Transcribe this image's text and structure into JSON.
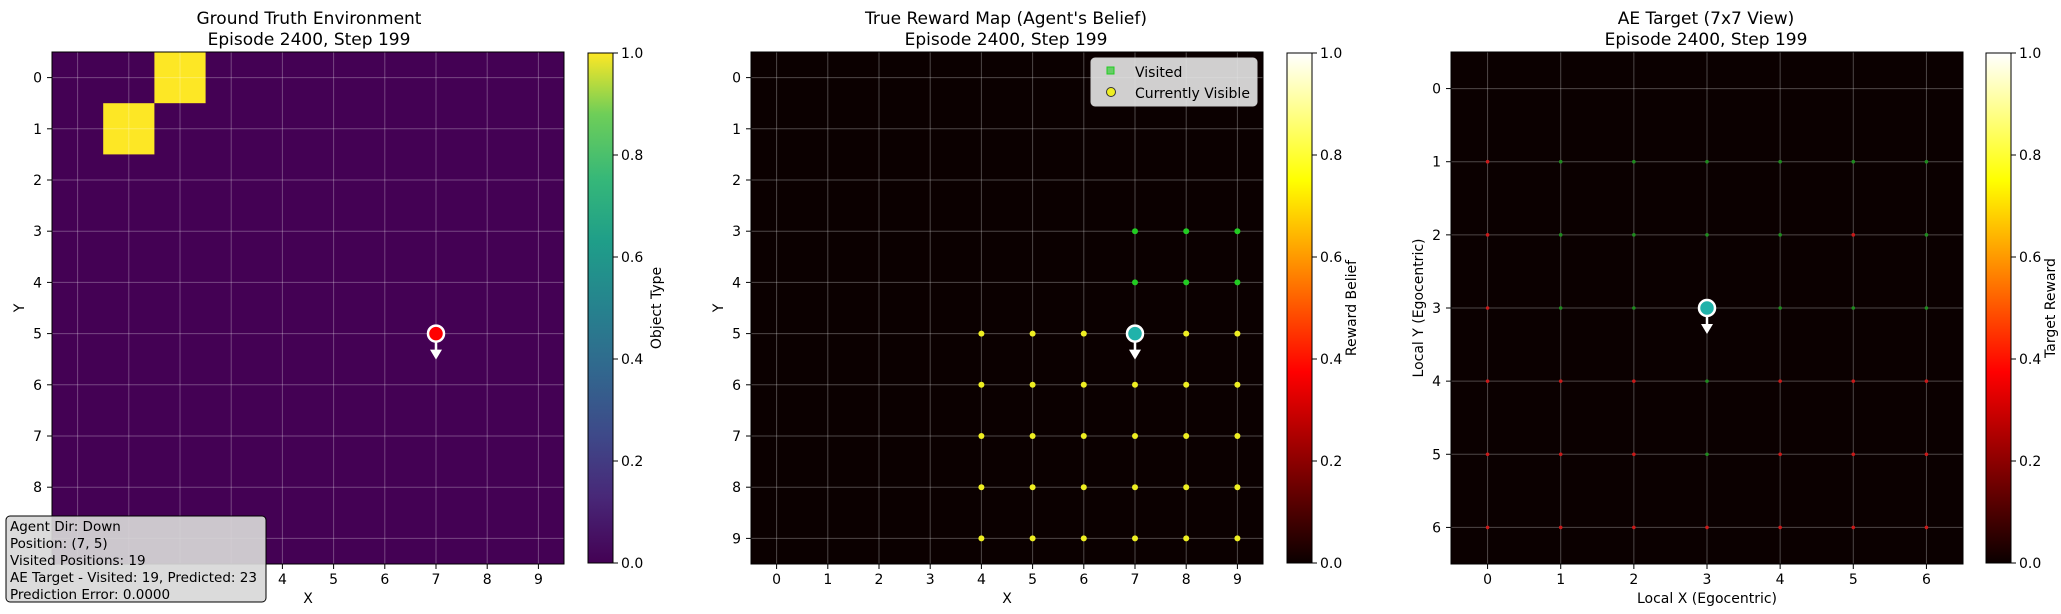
{
  "panel1": {
    "title_line1": "Ground Truth Environment",
    "title_line2": "Episode 2400, Step 199",
    "xlabel": "X",
    "ylabel": "Y",
    "colorbar_label": "Object Type",
    "colorbar_ticks": [
      "0.0",
      "0.2",
      "0.4",
      "0.6",
      "0.8",
      "1.0"
    ],
    "x_ticks": [
      "4",
      "5",
      "6",
      "7",
      "8",
      "9"
    ],
    "y_ticks": [
      "0",
      "1",
      "2",
      "3",
      "4",
      "5",
      "6",
      "7",
      "8"
    ],
    "info_box": [
      "Agent Dir: Down",
      "Position: (7, 5)",
      "Visited Positions: 19",
      "AE Target - Visited: 19, Predicted: 23",
      "Prediction Error: 0.0000"
    ]
  },
  "panel2": {
    "title_line1": "True Reward Map (Agent's Belief)",
    "title_line2": "Episode 2400, Step 199",
    "xlabel": "X",
    "ylabel": "Y",
    "colorbar_label": "Reward Belief",
    "colorbar_ticks": [
      "0.0",
      "0.2",
      "0.4",
      "0.6",
      "0.8",
      "1.0"
    ],
    "x_ticks": [
      "0",
      "1",
      "2",
      "3",
      "4",
      "5",
      "6",
      "7",
      "8",
      "9"
    ],
    "y_ticks": [
      "0",
      "1",
      "2",
      "3",
      "4",
      "5",
      "6",
      "7",
      "8",
      "9"
    ],
    "legend": [
      "Visited",
      "Currently Visible"
    ]
  },
  "panel3": {
    "title_line1": "AE Target (7x7 View)",
    "title_line2": "Episode 2400, Step 199",
    "xlabel": "Local X (Egocentric)",
    "ylabel": "Local Y (Egocentric)",
    "colorbar_label": "Target Reward",
    "colorbar_ticks": [
      "0.0",
      "0.2",
      "0.4",
      "0.6",
      "0.8",
      "1.0"
    ],
    "x_ticks": [
      "0",
      "1",
      "2",
      "3",
      "4",
      "5",
      "6"
    ],
    "y_ticks": [
      "0",
      "1",
      "2",
      "3",
      "4",
      "5",
      "6"
    ]
  },
  "chart_data": [
    {
      "type": "heatmap",
      "title": "Ground Truth Environment\nEpisode 2400, Step 199",
      "xlabel": "X",
      "ylabel": "Y",
      "xlim": [
        -0.5,
        9.5
      ],
      "ylim": [
        9.5,
        -0.5
      ],
      "grid": true,
      "colorbar": {
        "label": "Object Type",
        "range": [
          0,
          1
        ],
        "colormap": "viridis"
      },
      "cells_value_1": [
        [
          2,
          0
        ],
        [
          1,
          1
        ]
      ],
      "background_value": 0,
      "agent": {
        "x": 7,
        "y": 5,
        "direction": "down",
        "color": "#ff0000"
      }
    },
    {
      "type": "heatmap",
      "title": "True Reward Map (Agent's Belief)\nEpisode 2400, Step 199",
      "xlabel": "X",
      "ylabel": "Y",
      "xlim": [
        -0.5,
        9.5
      ],
      "ylim": [
        9.5,
        -0.5
      ],
      "grid": true,
      "colorbar": {
        "label": "Reward Belief",
        "range": [
          0,
          1
        ],
        "colormap": "hot"
      },
      "background_value": 0,
      "visited": [
        [
          7,
          3
        ],
        [
          8,
          3
        ],
        [
          9,
          3
        ],
        [
          7,
          4
        ],
        [
          8,
          4
        ],
        [
          9,
          4
        ]
      ],
      "currently_visible": [
        [
          4,
          5
        ],
        [
          5,
          5
        ],
        [
          6,
          5
        ],
        [
          8,
          5
        ],
        [
          9,
          5
        ],
        [
          4,
          6
        ],
        [
          5,
          6
        ],
        [
          6,
          6
        ],
        [
          7,
          6
        ],
        [
          8,
          6
        ],
        [
          9,
          6
        ],
        [
          4,
          7
        ],
        [
          5,
          7
        ],
        [
          6,
          7
        ],
        [
          7,
          7
        ],
        [
          8,
          7
        ],
        [
          9,
          7
        ],
        [
          4,
          8
        ],
        [
          5,
          8
        ],
        [
          6,
          8
        ],
        [
          7,
          8
        ],
        [
          8,
          8
        ],
        [
          9,
          8
        ],
        [
          4,
          9
        ],
        [
          5,
          9
        ],
        [
          6,
          9
        ],
        [
          7,
          9
        ],
        [
          8,
          9
        ],
        [
          9,
          9
        ]
      ],
      "legend": {
        "entries": [
          "Visited",
          "Currently Visible"
        ],
        "placement": "upper right"
      },
      "agent": {
        "x": 7,
        "y": 5,
        "direction": "down",
        "color": "#20b2aa"
      }
    },
    {
      "type": "heatmap",
      "title": "AE Target (7x7 View)\nEpisode 2400, Step 199",
      "xlabel": "Local X (Egocentric)",
      "ylabel": "Local Y (Egocentric)",
      "xlim": [
        -0.5,
        6.5
      ],
      "ylim": [
        6.5,
        -0.5
      ],
      "grid": true,
      "colorbar": {
        "label": "Target Reward",
        "range": [
          0,
          1
        ],
        "colormap": "hot"
      },
      "background_value": 0,
      "green_marks": [
        [
          1,
          1
        ],
        [
          2,
          1
        ],
        [
          3,
          1
        ],
        [
          4,
          1
        ],
        [
          5,
          1
        ],
        [
          6,
          1
        ],
        [
          1,
          2
        ],
        [
          2,
          2
        ],
        [
          3,
          2
        ],
        [
          4,
          2
        ],
        [
          6,
          2
        ],
        [
          1,
          3
        ],
        [
          2,
          3
        ],
        [
          4,
          3
        ],
        [
          5,
          3
        ],
        [
          6,
          3
        ],
        [
          3,
          4
        ],
        [
          3,
          5
        ]
      ],
      "red_marks": [
        [
          0,
          1
        ],
        [
          0,
          2
        ],
        [
          5,
          2
        ],
        [
          0,
          3
        ],
        [
          0,
          4
        ],
        [
          1,
          4
        ],
        [
          2,
          4
        ],
        [
          4,
          4
        ],
        [
          5,
          4
        ],
        [
          6,
          4
        ],
        [
          0,
          5
        ],
        [
          1,
          5
        ],
        [
          2,
          5
        ],
        [
          4,
          5
        ],
        [
          5,
          5
        ],
        [
          6,
          5
        ],
        [
          0,
          6
        ],
        [
          1,
          6
        ],
        [
          2,
          6
        ],
        [
          3,
          6
        ],
        [
          4,
          6
        ],
        [
          5,
          6
        ],
        [
          6,
          6
        ]
      ],
      "agent": {
        "x": 3,
        "y": 3,
        "direction": "down",
        "color": "#20b2aa"
      }
    }
  ],
  "colors": {
    "viridis_low": "#440154",
    "viridis_high": "#fde725",
    "visited_marker": "#22cc22",
    "visible_marker": "#eeee22",
    "agent_red": "#ff0000",
    "agent_teal": "#20b2aa"
  }
}
